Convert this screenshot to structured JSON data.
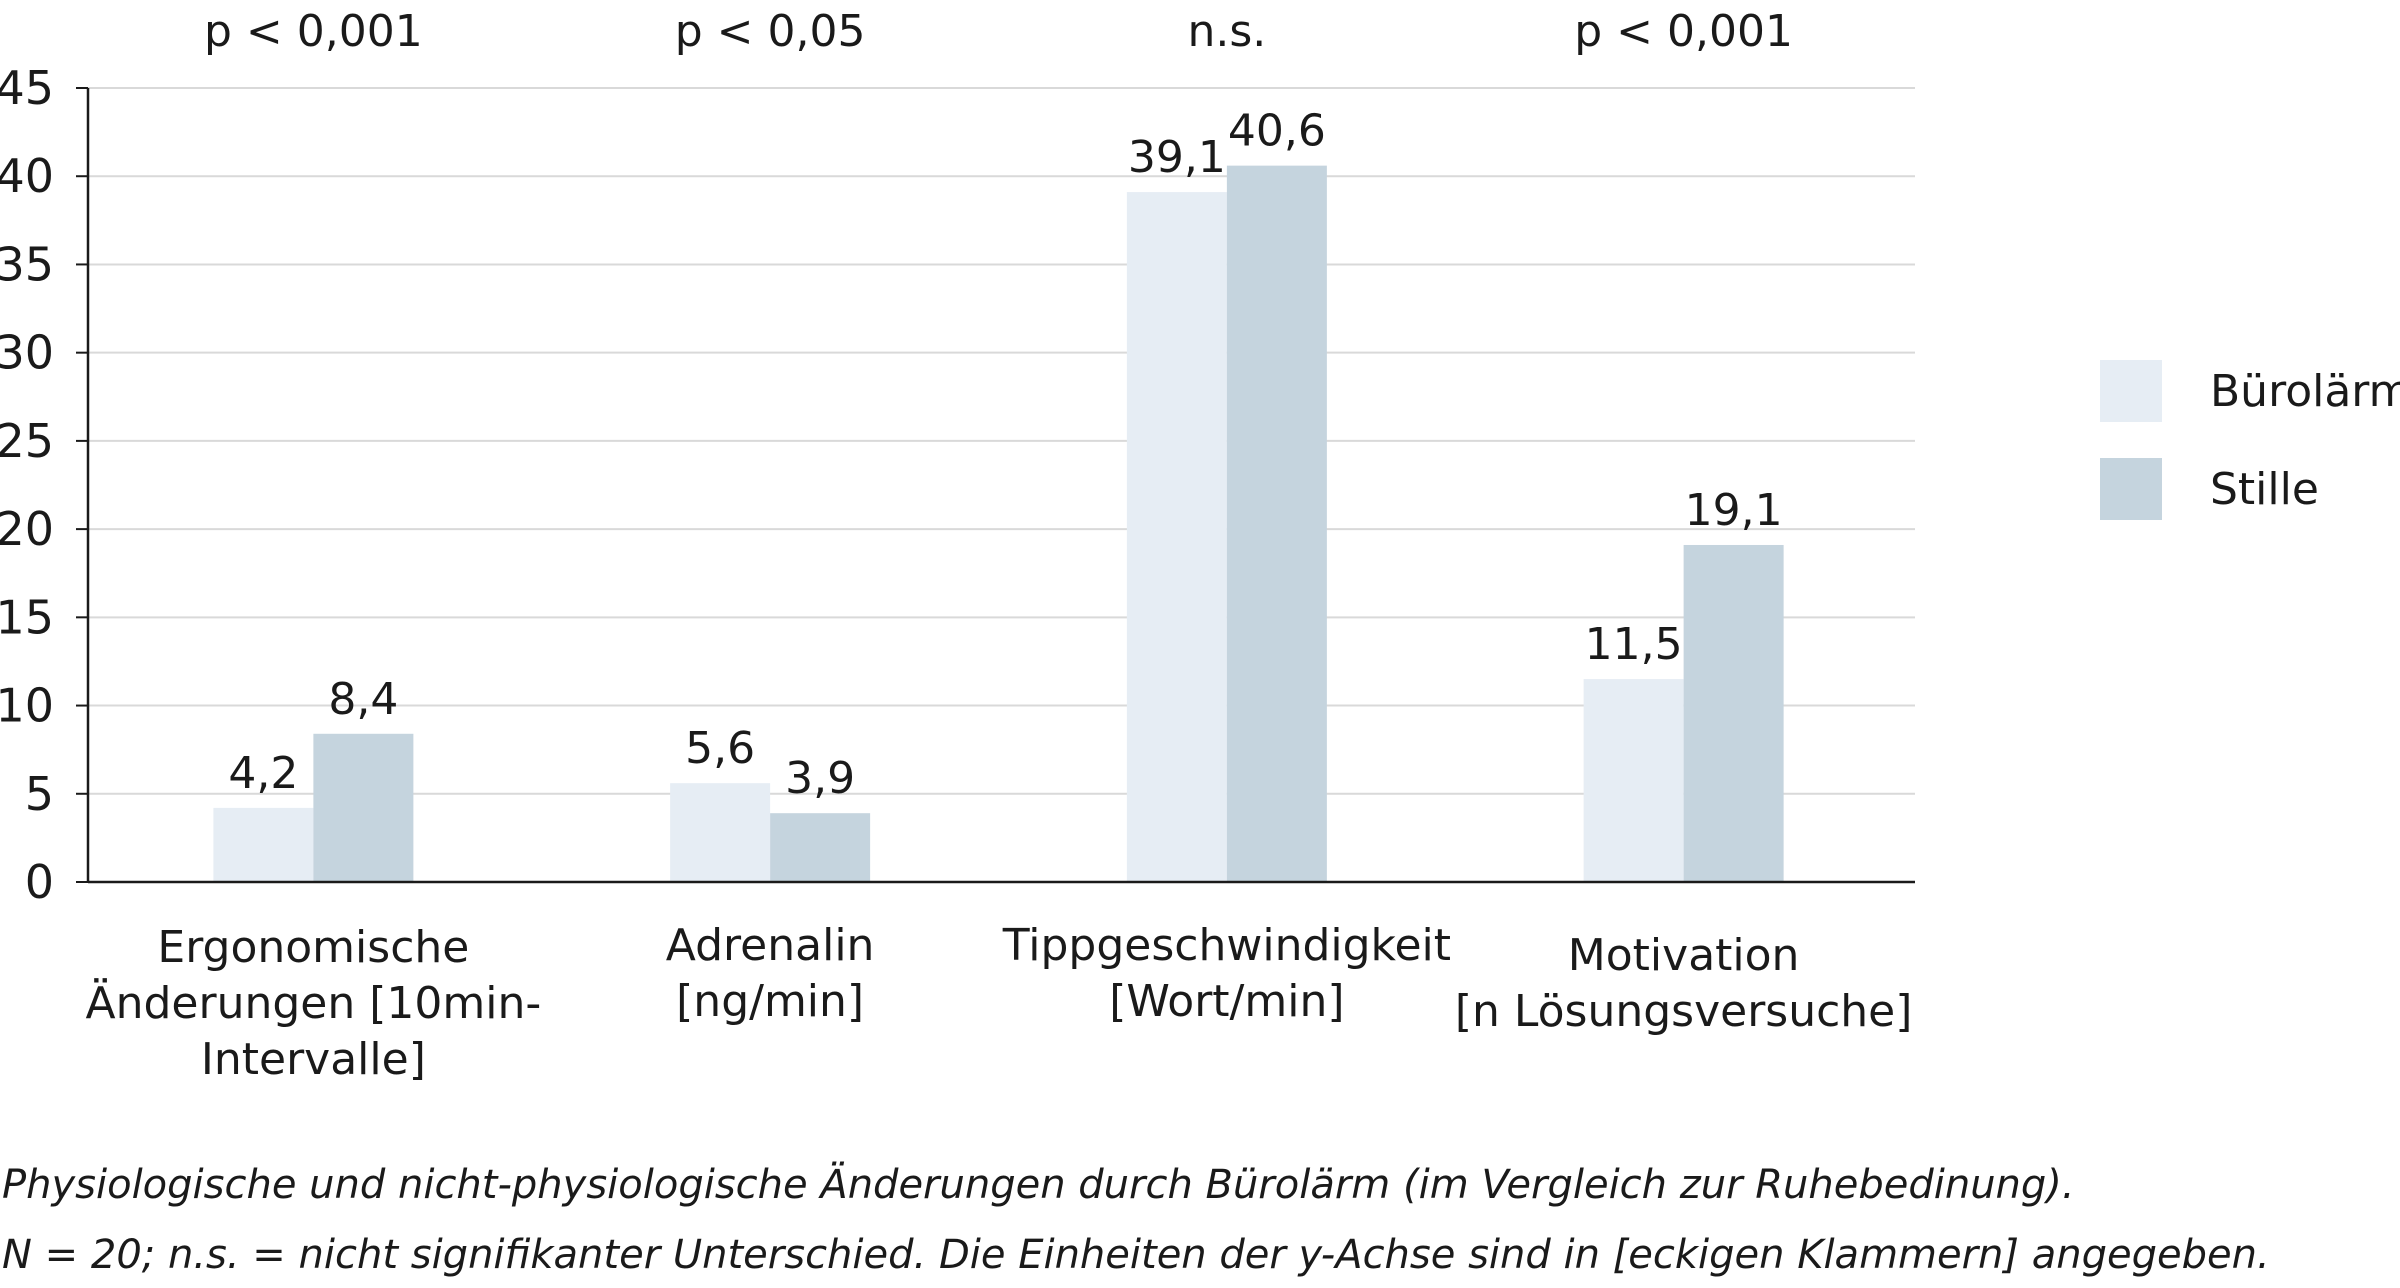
{
  "chart_data": {
    "type": "bar",
    "categories": [
      [
        "Ergonomische",
        "Änderungen [10min-",
        "Intervalle]"
      ],
      [
        "Adrenalin",
        "[ng/min]"
      ],
      [
        "Tippgeschwindigkeit",
        "[Wort/min]"
      ],
      [
        "Motivation",
        "[n Lösungsversuche]"
      ]
    ],
    "series": [
      {
        "name": "Bürolärm",
        "values": [
          4.2,
          5.6,
          39.1,
          11.5
        ],
        "labels": [
          "4,2",
          "5,6",
          "39,1",
          "11,5"
        ],
        "color": "#e6edf4"
      },
      {
        "name": "Stille",
        "values": [
          8.4,
          3.9,
          40.6,
          19.1
        ],
        "labels": [
          "8,4",
          "3,9",
          "40,6",
          "19,1"
        ],
        "color": "#c5d4de"
      }
    ],
    "significance": [
      "p < 0,001",
      "p < 0,05",
      "n.s.",
      "p < 0,001"
    ],
    "yticks": [
      0,
      5,
      10,
      15,
      20,
      25,
      30,
      35,
      40,
      45
    ],
    "ylim": [
      0,
      45
    ],
    "grid": true,
    "gridColor": "#d9d9d9",
    "axisColor": "#1a1a1a",
    "legend_position": "right",
    "xlabel": "",
    "ylabel": ""
  },
  "caption": {
    "line1": "Physiologische und nicht-physiologische Änderungen durch Bürolärm (im Vergleich zur Ruhebedinung).",
    "line2": "N = 20; n.s. = nicht signifikanter Unterschied. Die Einheiten der y-Achse sind in [eckigen Klammern] angegeben."
  }
}
